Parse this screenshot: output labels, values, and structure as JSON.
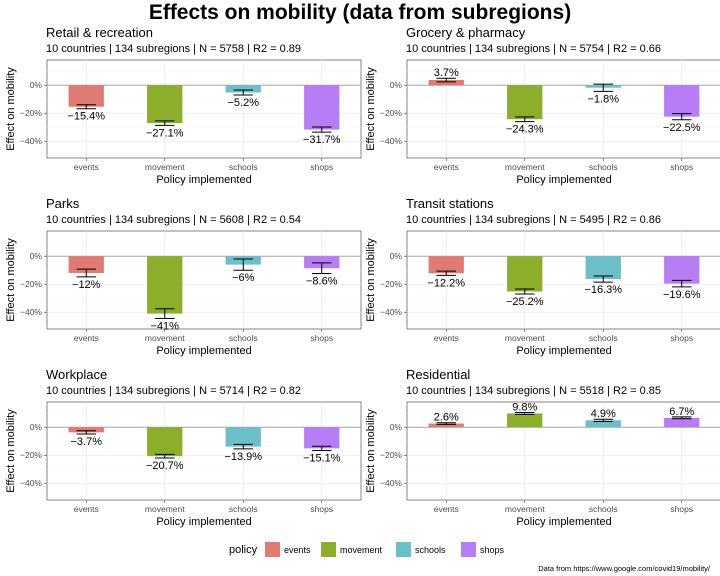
{
  "title": "Effects on mobility (data from subregions)",
  "source": "Data from https://www.google.com/covid19/mobility/",
  "legend": {
    "title": "policy",
    "items": [
      {
        "label": "events",
        "color": "#E07B73"
      },
      {
        "label": "movement",
        "color": "#8CAE2A"
      },
      {
        "label": "schools",
        "color": "#6BBFC8"
      },
      {
        "label": "shops",
        "color": "#B67DF7"
      }
    ]
  },
  "chart_data": [
    {
      "type": "bar",
      "title": "Retail & recreation",
      "subtitle": "10 countries | 134 subregions | N = 5758 | R2 = 0.89",
      "xlabel": "Policy implemented",
      "ylabel": "Effect on mobility",
      "categories": [
        "events",
        "movement",
        "schools",
        "shops"
      ],
      "values": [
        -15.4,
        -27.1,
        -5.2,
        -31.7
      ],
      "value_labels": [
        "−15.4%",
        "−27.1%",
        "−5.2%",
        "−31.7%"
      ],
      "errors": [
        1.4,
        1.6,
        1.8,
        1.8
      ],
      "ylim": [
        -52,
        18
      ],
      "yticks": [
        0,
        -20,
        -40
      ],
      "ytick_labels": [
        "0%",
        "−20%",
        "−40%"
      ],
      "grid": true
    },
    {
      "type": "bar",
      "title": "Grocery & pharmacy",
      "subtitle": "10 countries | 134 subregions | N = 5754 | R2 = 0.66",
      "xlabel": "Policy implemented",
      "ylabel": "Effect on mobility",
      "categories": [
        "events",
        "movement",
        "schools",
        "shops"
      ],
      "values": [
        3.7,
        -24.3,
        -1.8,
        -22.5
      ],
      "value_labels": [
        "3.7%",
        "−24.3%",
        "−1.8%",
        "−22.5%"
      ],
      "errors": [
        1.3,
        1.7,
        2.6,
        2.2
      ],
      "ylim": [
        -52,
        18
      ],
      "yticks": [
        0,
        -20,
        -40
      ],
      "ytick_labels": [
        "0%",
        "−20%",
        "−40%"
      ],
      "grid": true
    },
    {
      "type": "bar",
      "title": "Parks",
      "subtitle": "10 countries | 134 subregions | N = 5608 | R2 = 0.54",
      "xlabel": "Policy implemented",
      "ylabel": "Effect on mobility",
      "categories": [
        "events",
        "movement",
        "schools",
        "shops"
      ],
      "values": [
        -12,
        -41,
        -6,
        -8.6
      ],
      "value_labels": [
        "−12%",
        "−41%",
        "−6%",
        "−8.6%"
      ],
      "errors": [
        2.8,
        3.5,
        4.0,
        3.8
      ],
      "ylim": [
        -52,
        18
      ],
      "yticks": [
        0,
        -20,
        -40
      ],
      "ytick_labels": [
        "0%",
        "−20%",
        "−40%"
      ],
      "grid": true
    },
    {
      "type": "bar",
      "title": "Transit stations",
      "subtitle": "10 countries | 134 subregions | N = 5495 | R2 = 0.86",
      "xlabel": "Policy implemented",
      "ylabel": "Effect on mobility",
      "categories": [
        "events",
        "movement",
        "schools",
        "shops"
      ],
      "values": [
        -12.2,
        -25.2,
        -16.3,
        -19.6
      ],
      "value_labels": [
        "−12.2%",
        "−25.2%",
        "−16.3%",
        "−19.6%"
      ],
      "errors": [
        1.5,
        1.8,
        2.2,
        2.3
      ],
      "ylim": [
        -52,
        18
      ],
      "yticks": [
        0,
        -20,
        -40
      ],
      "ytick_labels": [
        "0%",
        "−20%",
        "−40%"
      ],
      "grid": true
    },
    {
      "type": "bar",
      "title": "Workplace",
      "subtitle": "10 countries | 134 subregions | N = 5714 | R2 = 0.82",
      "xlabel": "Policy implemented",
      "ylabel": "Effect on mobility",
      "categories": [
        "events",
        "movement",
        "schools",
        "shops"
      ],
      "values": [
        -3.7,
        -20.7,
        -13.9,
        -15.1
      ],
      "value_labels": [
        "−3.7%",
        "−20.7%",
        "−13.9%",
        "−15.1%"
      ],
      "errors": [
        1.2,
        1.3,
        1.6,
        1.5
      ],
      "ylim": [
        -52,
        18
      ],
      "yticks": [
        0,
        -20,
        -40
      ],
      "ytick_labels": [
        "0%",
        "−20%",
        "−40%"
      ],
      "grid": true
    },
    {
      "type": "bar",
      "title": "Residential",
      "subtitle": "10 countries | 134 subregions | N = 5518 | R2 = 0.85",
      "xlabel": "Policy implemented",
      "ylabel": "Effect on mobility",
      "categories": [
        "events",
        "movement",
        "schools",
        "shops"
      ],
      "values": [
        2.6,
        9.8,
        4.9,
        6.7
      ],
      "value_labels": [
        "2.6%",
        "9.8%",
        "4.9%",
        "6.7%"
      ],
      "errors": [
        0.6,
        0.7,
        0.8,
        0.7
      ],
      "ylim": [
        -52,
        18
      ],
      "yticks": [
        0,
        -20,
        -40
      ],
      "ytick_labels": [
        "0%",
        "−20%",
        "−40%"
      ],
      "grid": true
    }
  ]
}
